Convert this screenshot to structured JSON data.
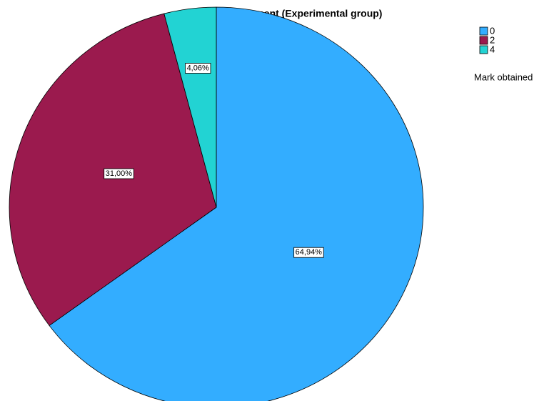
{
  "chart_data": {
    "type": "pie",
    "title": "Measurement (Experimental group)",
    "categories": [
      "0",
      "2",
      "4"
    ],
    "values": [
      64.94,
      31.0,
      4.06
    ],
    "value_labels": [
      "64,94%",
      "31,00%",
      "4,06%"
    ],
    "colors": [
      "#33adff",
      "#9b1a4e",
      "#22d3d3"
    ],
    "legend_title": "Mark obtained",
    "legend": "top-right"
  }
}
